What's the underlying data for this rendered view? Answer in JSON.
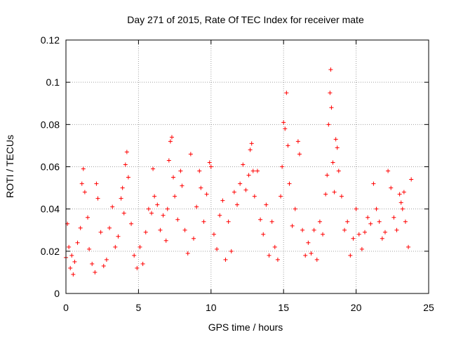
{
  "chart_data": {
    "type": "scatter",
    "title": "Day 271 of 2015, Rate Of TEC Index for receiver mate",
    "xlabel": "GPS time / hours",
    "ylabel": "ROTI / TECUs",
    "xlim": [
      0,
      25
    ],
    "ylim": [
      0,
      0.12
    ],
    "xticks": [
      0,
      5,
      10,
      15,
      20,
      25
    ],
    "xtick_labels": [
      "0",
      "5",
      "10",
      "15",
      "20",
      "25"
    ],
    "yticks": [
      0,
      0.02,
      0.04,
      0.06,
      0.08,
      0.1,
      0.12
    ],
    "ytick_labels": [
      "0",
      "0.02",
      "0.04",
      "0.06",
      "0.08",
      "0.1",
      "0.12"
    ],
    "grid": true,
    "marker": "+",
    "color": "#ff0000",
    "series": [
      {
        "name": "ROTI",
        "points": [
          [
            0.0,
            0.017
          ],
          [
            0.1,
            0.033
          ],
          [
            0.2,
            0.022
          ],
          [
            0.3,
            0.012
          ],
          [
            0.4,
            0.018
          ],
          [
            0.5,
            0.009
          ],
          [
            0.6,
            0.015
          ],
          [
            0.8,
            0.024
          ],
          [
            1.0,
            0.031
          ],
          [
            1.1,
            0.052
          ],
          [
            1.2,
            0.059
          ],
          [
            1.3,
            0.048
          ],
          [
            1.5,
            0.036
          ],
          [
            1.6,
            0.021
          ],
          [
            1.8,
            0.014
          ],
          [
            2.0,
            0.01
          ],
          [
            2.1,
            0.052
          ],
          [
            2.2,
            0.045
          ],
          [
            2.4,
            0.029
          ],
          [
            2.6,
            0.013
          ],
          [
            2.8,
            0.016
          ],
          [
            3.0,
            0.031
          ],
          [
            3.2,
            0.041
          ],
          [
            3.4,
            0.022
          ],
          [
            3.6,
            0.027
          ],
          [
            3.8,
            0.045
          ],
          [
            3.9,
            0.05
          ],
          [
            4.0,
            0.038
          ],
          [
            4.1,
            0.061
          ],
          [
            4.2,
            0.067
          ],
          [
            4.3,
            0.055
          ],
          [
            4.5,
            0.033
          ],
          [
            4.7,
            0.018
          ],
          [
            4.9,
            0.012
          ],
          [
            5.1,
            0.022
          ],
          [
            5.3,
            0.014
          ],
          [
            5.5,
            0.029
          ],
          [
            5.7,
            0.04
          ],
          [
            5.9,
            0.038
          ],
          [
            6.0,
            0.059
          ],
          [
            6.1,
            0.046
          ],
          [
            6.3,
            0.042
          ],
          [
            6.5,
            0.03
          ],
          [
            6.7,
            0.037
          ],
          [
            6.9,
            0.025
          ],
          [
            7.0,
            0.04
          ],
          [
            7.1,
            0.063
          ],
          [
            7.2,
            0.072
          ],
          [
            7.3,
            0.074
          ],
          [
            7.4,
            0.055
          ],
          [
            7.5,
            0.046
          ],
          [
            7.7,
            0.035
          ],
          [
            7.9,
            0.058
          ],
          [
            8.0,
            0.051
          ],
          [
            8.2,
            0.03
          ],
          [
            8.4,
            0.019
          ],
          [
            8.6,
            0.066
          ],
          [
            8.8,
            0.026
          ],
          [
            9.0,
            0.041
          ],
          [
            9.2,
            0.058
          ],
          [
            9.3,
            0.05
          ],
          [
            9.5,
            0.034
          ],
          [
            9.7,
            0.047
          ],
          [
            9.9,
            0.062
          ],
          [
            10.0,
            0.06
          ],
          [
            10.2,
            0.028
          ],
          [
            10.4,
            0.021
          ],
          [
            10.6,
            0.037
          ],
          [
            10.8,
            0.044
          ],
          [
            11.0,
            0.016
          ],
          [
            11.2,
            0.034
          ],
          [
            11.4,
            0.02
          ],
          [
            11.6,
            0.048
          ],
          [
            11.8,
            0.042
          ],
          [
            12.0,
            0.052
          ],
          [
            12.2,
            0.061
          ],
          [
            12.4,
            0.049
          ],
          [
            12.6,
            0.056
          ],
          [
            12.7,
            0.068
          ],
          [
            12.8,
            0.071
          ],
          [
            12.9,
            0.058
          ],
          [
            13.0,
            0.046
          ],
          [
            13.2,
            0.058
          ],
          [
            13.4,
            0.035
          ],
          [
            13.6,
            0.028
          ],
          [
            13.8,
            0.042
          ],
          [
            14.0,
            0.018
          ],
          [
            14.2,
            0.034
          ],
          [
            14.4,
            0.022
          ],
          [
            14.6,
            0.016
          ],
          [
            14.8,
            0.046
          ],
          [
            14.9,
            0.06
          ],
          [
            15.0,
            0.081
          ],
          [
            15.1,
            0.078
          ],
          [
            15.2,
            0.095
          ],
          [
            15.3,
            0.07
          ],
          [
            15.4,
            0.052
          ],
          [
            15.6,
            0.032
          ],
          [
            15.8,
            0.04
          ],
          [
            16.0,
            0.072
          ],
          [
            16.1,
            0.066
          ],
          [
            16.3,
            0.03
          ],
          [
            16.5,
            0.018
          ],
          [
            16.7,
            0.024
          ],
          [
            16.9,
            0.019
          ],
          [
            17.1,
            0.03
          ],
          [
            17.3,
            0.016
          ],
          [
            17.5,
            0.034
          ],
          [
            17.7,
            0.028
          ],
          [
            17.9,
            0.047
          ],
          [
            18.0,
            0.056
          ],
          [
            18.1,
            0.08
          ],
          [
            18.2,
            0.095
          ],
          [
            18.25,
            0.106
          ],
          [
            18.3,
            0.088
          ],
          [
            18.4,
            0.062
          ],
          [
            18.5,
            0.048
          ],
          [
            18.6,
            0.073
          ],
          [
            18.7,
            0.069
          ],
          [
            18.8,
            0.058
          ],
          [
            19.0,
            0.046
          ],
          [
            19.2,
            0.03
          ],
          [
            19.4,
            0.034
          ],
          [
            19.6,
            0.018
          ],
          [
            19.8,
            0.026
          ],
          [
            20.0,
            0.04
          ],
          [
            20.2,
            0.028
          ],
          [
            20.4,
            0.021
          ],
          [
            20.6,
            0.029
          ],
          [
            20.8,
            0.036
          ],
          [
            21.0,
            0.033
          ],
          [
            21.2,
            0.052
          ],
          [
            21.4,
            0.04
          ],
          [
            21.6,
            0.034
          ],
          [
            21.8,
            0.026
          ],
          [
            22.0,
            0.029
          ],
          [
            22.2,
            0.058
          ],
          [
            22.4,
            0.05
          ],
          [
            22.6,
            0.036
          ],
          [
            22.8,
            0.03
          ],
          [
            23.0,
            0.047
          ],
          [
            23.1,
            0.043
          ],
          [
            23.2,
            0.04
          ],
          [
            23.3,
            0.048
          ],
          [
            23.4,
            0.034
          ],
          [
            23.6,
            0.022
          ],
          [
            23.8,
            0.054
          ]
        ]
      }
    ]
  }
}
